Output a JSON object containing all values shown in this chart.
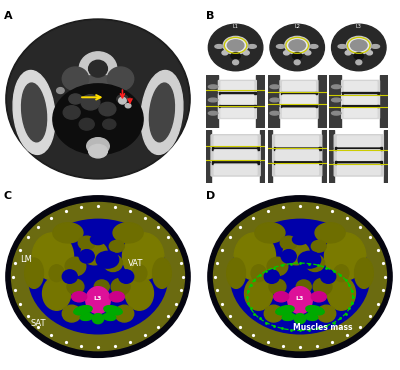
{
  "panel_labels": [
    "A",
    "B",
    "C",
    "D"
  ],
  "background_color": "#ffffff",
  "ct_bg": "#2a2a2a",
  "ct_bone": "#e0e0e0",
  "ct_soft": "#707070",
  "ct_dark": "#0a0a0a",
  "spine_mid_bg": "#555555",
  "spine_bot_bg": "#666666",
  "body_blue": "#0000aa",
  "body_olive": "#808000",
  "body_magenta": "#dd1199",
  "body_green": "#00bb00",
  "yellow_line": "#cccc00",
  "yellow_arrow": "#ffdd00",
  "red_arrow": "#ff2020",
  "white": "#ffffff",
  "label_fs": 6,
  "panel_label_fs": 8
}
